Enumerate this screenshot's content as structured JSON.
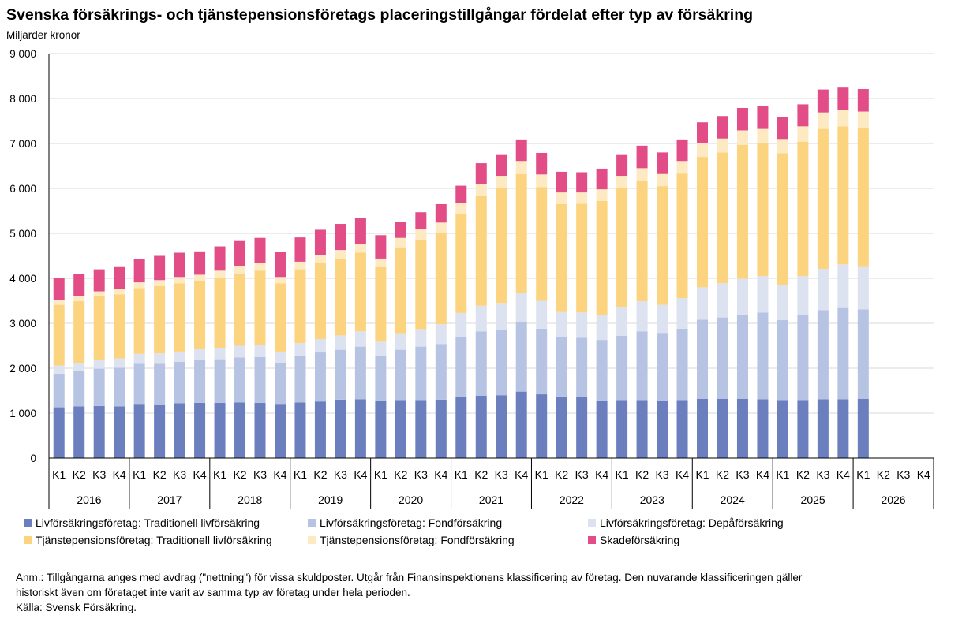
{
  "title": "Svenska försäkrings- och tjänstepensionsföretags placeringstillgångar fördelat efter typ av försäkring",
  "subtitle": "Miljarder kronor",
  "note_line1": "Anm.: Tillgångarna anges med avdrag (\"nettning\") för vissa skuldposter. Utgår från Finansinspektionens klassificering av företag. Den nuvarande  klassificeringen gäller",
  "note_line2": "historiskt även om företaget inte varit av samma typ av företag under hela perioden.",
  "source": "Källa: Svensk Försäkring.",
  "chart_data": {
    "type": "bar",
    "stacked": true,
    "ylim": [
      0,
      9000
    ],
    "yticks": [
      0,
      1000,
      2000,
      3000,
      4000,
      5000,
      6000,
      7000,
      8000,
      9000
    ],
    "ytick_labels": [
      "0",
      "1 000",
      "2 000",
      "3 000",
      "4 000",
      "5 000",
      "6 000",
      "7 000",
      "8 000",
      "9 000"
    ],
    "grid": true,
    "legend_position": "bottom",
    "years": [
      "2016",
      "2017",
      "2018",
      "2019",
      "2020",
      "2021",
      "2022",
      "2023",
      "2024",
      "2025",
      "2026"
    ],
    "quarters": [
      "K1",
      "K2",
      "K3",
      "K4"
    ],
    "series": [
      {
        "name": "Livförsäkringsföretag: Traditionell livförsäkring",
        "color": "#6b7fbf",
        "values": [
          1130,
          1150,
          1160,
          1150,
          1190,
          1180,
          1220,
          1230,
          1230,
          1240,
          1230,
          1190,
          1240,
          1260,
          1300,
          1310,
          1270,
          1290,
          1290,
          1300,
          1360,
          1390,
          1400,
          1480,
          1420,
          1370,
          1360,
          1270,
          1290,
          1290,
          1280,
          1290,
          1320,
          1320,
          1320,
          1310,
          1290,
          1290,
          1310,
          1310,
          1320,
          null,
          null,
          null
        ]
      },
      {
        "name": "Livförsäkringsföretag: Fondförsäkring",
        "color": "#b7c3e2",
        "values": [
          750,
          780,
          830,
          860,
          910,
          920,
          920,
          950,
          970,
          1000,
          1020,
          920,
          1030,
          1090,
          1110,
          1170,
          1000,
          1120,
          1190,
          1240,
          1340,
          1430,
          1450,
          1560,
          1460,
          1320,
          1320,
          1360,
          1430,
          1530,
          1490,
          1590,
          1760,
          1810,
          1860,
          1930,
          1780,
          1890,
          1980,
          2030,
          1990,
          null,
          null,
          null
        ]
      },
      {
        "name": "Livförsäkringsföretag: Depåförsäkring",
        "color": "#dde2f1",
        "values": [
          180,
          190,
          200,
          210,
          220,
          230,
          230,
          240,
          250,
          260,
          270,
          260,
          290,
          300,
          320,
          340,
          320,
          350,
          390,
          440,
          530,
          570,
          600,
          640,
          620,
          560,
          560,
          560,
          630,
          670,
          640,
          680,
          720,
          760,
          810,
          810,
          780,
          870,
          920,
          970,
          940,
          null,
          null,
          null
        ]
      },
      {
        "name": "Tjänstepensionsföretag: Traditionell livförsäkring",
        "color": "#fcd37e",
        "values": [
          1350,
          1370,
          1410,
          1420,
          1460,
          1500,
          1520,
          1520,
          1570,
          1610,
          1650,
          1520,
          1640,
          1690,
          1710,
          1750,
          1660,
          1930,
          1990,
          2020,
          2200,
          2440,
          2550,
          2640,
          2530,
          2400,
          2420,
          2530,
          2660,
          2690,
          2640,
          2770,
          2900,
          2910,
          2980,
          2960,
          2930,
          2990,
          3130,
          3070,
          3100,
          null,
          null,
          null
        ]
      },
      {
        "name": "Tjänstepensionsföretag: Fondförsäkring",
        "color": "#fde9c2",
        "values": [
          100,
          110,
          110,
          120,
          130,
          130,
          140,
          140,
          150,
          160,
          170,
          140,
          170,
          180,
          190,
          200,
          190,
          210,
          230,
          240,
          250,
          270,
          280,
          290,
          280,
          260,
          250,
          260,
          270,
          270,
          270,
          280,
          300,
          310,
          320,
          330,
          320,
          340,
          350,
          360,
          360,
          null,
          null,
          null
        ]
      },
      {
        "name": "Skadeförsäkring",
        "color": "#e24d88",
        "values": [
          490,
          490,
          490,
          490,
          520,
          540,
          540,
          520,
          540,
          560,
          560,
          550,
          540,
          560,
          580,
          580,
          520,
          360,
          380,
          410,
          380,
          460,
          480,
          480,
          480,
          460,
          450,
          460,
          480,
          500,
          480,
          480,
          470,
          500,
          500,
          490,
          480,
          490,
          510,
          520,
          500,
          null,
          null,
          null
        ]
      }
    ]
  },
  "legend": {
    "items": [
      {
        "label": "Livförsäkringsföretag: Traditionell livförsäkring",
        "color": "#6b7fbf"
      },
      {
        "label": "Livförsäkringsföretag: Fondförsäkring",
        "color": "#b7c3e2"
      },
      {
        "label": "Livförsäkringsföretag: Depåförsäkring",
        "color": "#dde2f1"
      },
      {
        "label": "Tjänstepensionsföretag: Traditionell livförsäkring",
        "color": "#fcd37e"
      },
      {
        "label": "Tjänstepensionsföretag: Fondförsäkring",
        "color": "#fde9c2"
      },
      {
        "label": "Skadeförsäkring",
        "color": "#e24d88"
      }
    ]
  }
}
